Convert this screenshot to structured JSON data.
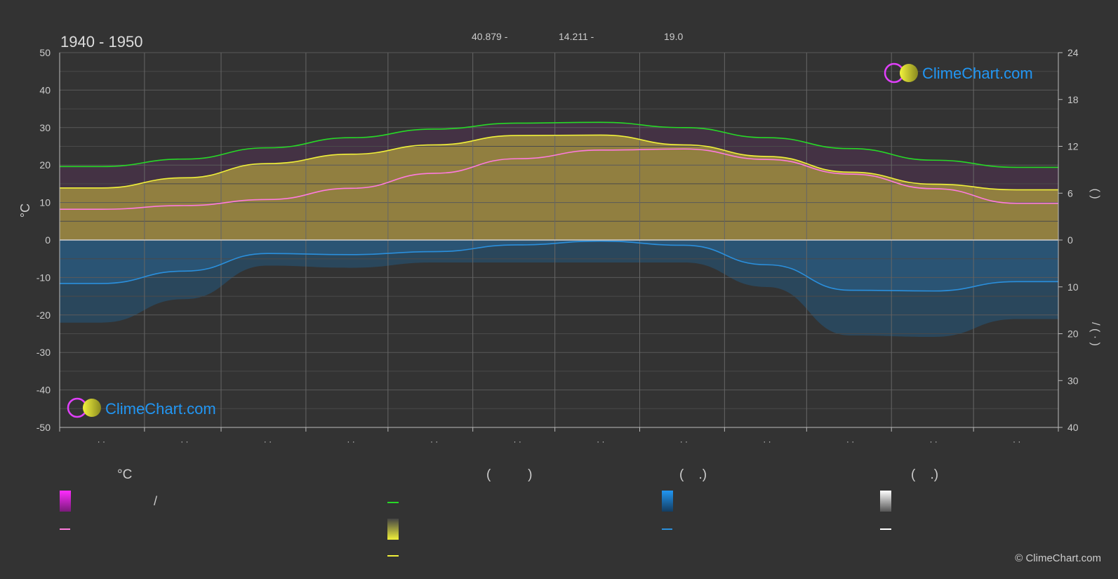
{
  "header": {
    "title": "1940 - 1950",
    "coords": [
      {
        "lat": "40.879 -"
      },
      {
        "lon": "14.211 -"
      },
      {
        "elev": "19.0"
      }
    ]
  },
  "brand": {
    "logo_text": "ClimeChart.com",
    "copyright": "© ClimeChart.com",
    "colors": {
      "ring": "#e040fb",
      "sun": "#d8d84a",
      "text": "#2196f3"
    }
  },
  "colors": {
    "background": "#333333",
    "grid": "#555555",
    "daylight": "#27d827",
    "sunshine": "#f0f03a",
    "temp_mean": "#ff7bde",
    "temp_max_fill": "#c832c8",
    "sunshine_fill": "#9a9a2e",
    "precip": "#2a8fdc",
    "precip_fill": "#1f5f8f",
    "axis_text": "#cccccc"
  },
  "chart_data": {
    "type": "area",
    "x": [
      "Jan",
      "Feb",
      "Mar",
      "Apr",
      "May",
      "Jun",
      "Jul",
      "Aug",
      "Sep",
      "Oct",
      "Nov",
      "Dec"
    ],
    "x_tick_labels": [
      "· ·",
      "· ·",
      "· ·",
      "· ·",
      "· ·",
      "· ·",
      "· ·",
      "· ·",
      "· ·",
      "· ·",
      "· ·",
      "· ·"
    ],
    "ylabel": "°C",
    "ylim": [
      -50,
      50
    ],
    "yticks": [
      50,
      40,
      30,
      20,
      10,
      0,
      -10,
      -20,
      -30,
      -40,
      -50
    ],
    "right_axis_top": {
      "ylim": [
        0,
        24
      ],
      "ticks": [
        24,
        18,
        12,
        6,
        0
      ],
      "label": "(     )"
    },
    "right_axis_bottom": {
      "ylim": [
        0,
        40
      ],
      "ticks": [
        10,
        20,
        30,
        40
      ],
      "label": "/   (  ·  )"
    },
    "grid": true,
    "series": [
      {
        "key": "daylight",
        "values": [
          19.6,
          21.6,
          24.6,
          27.3,
          29.6,
          31.2,
          31.4,
          30.0,
          27.3,
          24.4,
          21.3,
          19.4
        ]
      },
      {
        "key": "sunshine",
        "values": [
          13.9,
          16.6,
          20.4,
          22.9,
          25.4,
          27.9,
          28.0,
          25.4,
          22.3,
          18.1,
          14.9,
          13.4
        ]
      },
      {
        "key": "temp_mean",
        "values": [
          8.2,
          9.2,
          10.8,
          13.8,
          17.8,
          21.7,
          24.0,
          24.3,
          21.5,
          17.6,
          13.7,
          9.8
        ]
      },
      {
        "key": "precip",
        "values": [
          -11.6,
          -8.3,
          -3.6,
          -3.9,
          -3.1,
          -1.3,
          -0.3,
          -1.4,
          -6.6,
          -13.4,
          -13.6,
          -11.1
        ]
      }
    ]
  },
  "legend": {
    "col1": {
      "head": "°C",
      "row1": "/",
      "row2": ""
    },
    "col2": {
      "head": "(          )",
      "row1": "",
      "row2": "",
      "row3": ""
    },
    "col3": {
      "head": "(    .)",
      "row1": "",
      "row2": ""
    },
    "col4": {
      "head": "(    .)",
      "row1": "",
      "row2": ""
    }
  }
}
